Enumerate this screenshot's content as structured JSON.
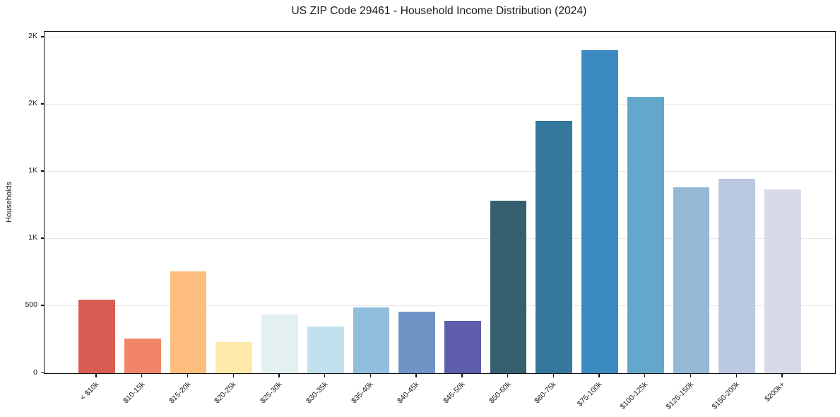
{
  "chart_data": {
    "type": "bar",
    "title": "US ZIP Code 29461 - Household Income Distribution (2024)",
    "xlabel": "",
    "ylabel": "Households",
    "categories": [
      "< $10k",
      "$10-15k",
      "$15-20k",
      "$20-25k",
      "$25-30k",
      "$30-35k",
      "$35-40k",
      "$40-45k",
      "$45-50k",
      "$50-60k",
      "$60-75k",
      "$75-100k",
      "$100-125k",
      "$125-150k",
      "$150-200k",
      "$200k+"
    ],
    "values": [
      545,
      260,
      760,
      230,
      435,
      345,
      490,
      460,
      390,
      1285,
      1880,
      2405,
      2060,
      1385,
      1445,
      1370
    ],
    "bar_colors": [
      "#d95c52",
      "#f28569",
      "#fcbd7d",
      "#fde9a9",
      "#e3eff1",
      "#bfe0ec",
      "#92bedd",
      "#7093c6",
      "#5d5dab",
      "#36606f",
      "#35789e",
      "#3a8bc2",
      "#63a8ca",
      "#93b9d6",
      "#bac9df",
      "#d8dae8"
    ],
    "yticks": {
      "values": [
        0,
        500,
        1000,
        1500,
        2000,
        2500
      ],
      "labels": [
        "0",
        "500",
        "1K",
        "1K",
        "2K",
        "2K"
      ]
    },
    "ylim": [
      0,
      2542
    ],
    "grid": "horizontal",
    "legend": "none"
  },
  "colors": {
    "background": "#ffffff",
    "axis": "#111111",
    "gridline": "#e9e9e9",
    "text": "#1a1a1a"
  }
}
